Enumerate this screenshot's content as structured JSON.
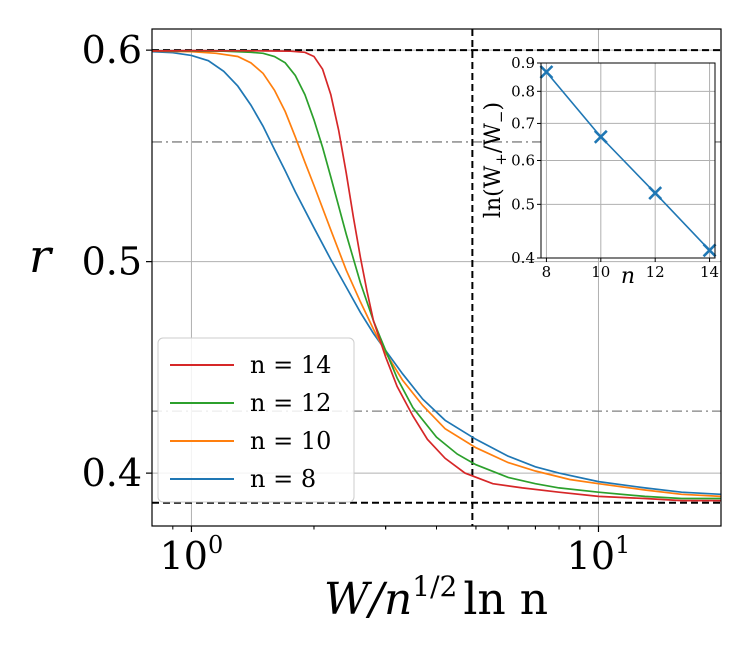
{
  "chart_data": [
    {
      "type": "line",
      "xscale": "log",
      "xlim": [
        0.8,
        20
      ],
      "ylim": [
        0.375,
        0.61
      ],
      "grid": true,
      "ylabel": "r",
      "xlabel": {
        "base": "W/n",
        "exponent": "1/2",
        "tail": "ln n"
      },
      "yticks": [
        {
          "value": 0.4,
          "label": "0.4"
        },
        {
          "value": 0.5,
          "label": "0.5"
        },
        {
          "value": 0.6,
          "label": "0.6"
        }
      ],
      "xticks": [
        {
          "value": 1,
          "base": "10",
          "exp": "0"
        },
        {
          "value": 10,
          "base": "10",
          "exp": "1"
        }
      ],
      "legend_position": "lower-left",
      "series": [
        {
          "name": "n = 14",
          "color": "#d62728",
          "points": [
            [
              0.8,
              0.5996
            ],
            [
              1.0,
              0.5998
            ],
            [
              1.2,
              0.5997
            ],
            [
              1.4,
              0.5997
            ],
            [
              1.6,
              0.5996
            ],
            [
              1.75,
              0.5995
            ],
            [
              1.9,
              0.599
            ],
            [
              2.0,
              0.597
            ],
            [
              2.1,
              0.591
            ],
            [
              2.2,
              0.579
            ],
            [
              2.3,
              0.562
            ],
            [
              2.4,
              0.542
            ],
            [
              2.5,
              0.521
            ],
            [
              2.6,
              0.502
            ],
            [
              2.7,
              0.486
            ],
            [
              2.8,
              0.472
            ],
            [
              3.0,
              0.455
            ],
            [
              3.2,
              0.441
            ],
            [
              3.5,
              0.427
            ],
            [
              3.8,
              0.416
            ],
            [
              4.2,
              0.407
            ],
            [
              4.7,
              0.4
            ],
            [
              5.5,
              0.395
            ],
            [
              6.5,
              0.393
            ],
            [
              8,
              0.391
            ],
            [
              10,
              0.389
            ],
            [
              13,
              0.388
            ],
            [
              16,
              0.387
            ],
            [
              20,
              0.387
            ]
          ]
        },
        {
          "name": "n = 12",
          "color": "#2ca02c",
          "points": [
            [
              0.8,
              0.5996
            ],
            [
              1.0,
              0.5996
            ],
            [
              1.2,
              0.5995
            ],
            [
              1.4,
              0.599
            ],
            [
              1.5,
              0.5985
            ],
            [
              1.6,
              0.597
            ],
            [
              1.7,
              0.594
            ],
            [
              1.8,
              0.588
            ],
            [
              1.9,
              0.579
            ],
            [
              2.0,
              0.567
            ],
            [
              2.1,
              0.554
            ],
            [
              2.2,
              0.54
            ],
            [
              2.4,
              0.513
            ],
            [
              2.6,
              0.49
            ],
            [
              2.8,
              0.472
            ],
            [
              3.0,
              0.458
            ],
            [
              3.2,
              0.445
            ],
            [
              3.5,
              0.431
            ],
            [
              4.0,
              0.417
            ],
            [
              4.5,
              0.409
            ],
            [
              5.0,
              0.404
            ],
            [
              6,
              0.398
            ],
            [
              7,
              0.395
            ],
            [
              8,
              0.393
            ],
            [
              10,
              0.391
            ],
            [
              13,
              0.389
            ],
            [
              16,
              0.388
            ],
            [
              20,
              0.388
            ]
          ]
        },
        {
          "name": "n = 10",
          "color": "#ff7f0e",
          "points": [
            [
              0.8,
              0.5995
            ],
            [
              1.0,
              0.5993
            ],
            [
              1.15,
              0.5985
            ],
            [
              1.3,
              0.597
            ],
            [
              1.4,
              0.594
            ],
            [
              1.5,
              0.589
            ],
            [
              1.6,
              0.581
            ],
            [
              1.7,
              0.571
            ],
            [
              1.8,
              0.559
            ],
            [
              1.9,
              0.547
            ],
            [
              2.0,
              0.536
            ],
            [
              2.2,
              0.515
            ],
            [
              2.4,
              0.496
            ],
            [
              2.6,
              0.481
            ],
            [
              2.8,
              0.468
            ],
            [
              3.0,
              0.457
            ],
            [
              3.3,
              0.444
            ],
            [
              3.7,
              0.432
            ],
            [
              4.2,
              0.421
            ],
            [
              5.0,
              0.412
            ],
            [
              6,
              0.405
            ],
            [
              7,
              0.401
            ],
            [
              8.5,
              0.397
            ],
            [
              10,
              0.395
            ],
            [
              13,
              0.392
            ],
            [
              16,
              0.39
            ],
            [
              20,
              0.389
            ]
          ]
        },
        {
          "name": "n = 8",
          "color": "#1f77b4",
          "points": [
            [
              0.8,
              0.5993
            ],
            [
              0.9,
              0.5988
            ],
            [
              1.0,
              0.5975
            ],
            [
              1.1,
              0.595
            ],
            [
              1.2,
              0.59
            ],
            [
              1.3,
              0.583
            ],
            [
              1.4,
              0.574
            ],
            [
              1.5,
              0.564
            ],
            [
              1.6,
              0.553
            ],
            [
              1.7,
              0.543
            ],
            [
              1.8,
              0.533
            ],
            [
              2.0,
              0.516
            ],
            [
              2.2,
              0.501
            ],
            [
              2.4,
              0.488
            ],
            [
              2.6,
              0.476
            ],
            [
              2.8,
              0.466
            ],
            [
              3.0,
              0.458
            ],
            [
              3.3,
              0.447
            ],
            [
              3.7,
              0.435
            ],
            [
              4.2,
              0.425
            ],
            [
              5.0,
              0.416
            ],
            [
              6,
              0.408
            ],
            [
              7,
              0.403
            ],
            [
              8,
              0.4
            ],
            [
              10,
              0.396
            ],
            [
              13,
              0.393
            ],
            [
              16,
              0.391
            ],
            [
              20,
              0.39
            ]
          ]
        }
      ],
      "reference_lines": [
        {
          "orientation": "h",
          "value": 0.6,
          "style": "dashed",
          "color": "#000000"
        },
        {
          "orientation": "h",
          "value": 0.386,
          "style": "dashed",
          "color": "#000000"
        },
        {
          "orientation": "h",
          "value": 0.5566,
          "style": "dashdot",
          "color": "#808080"
        },
        {
          "orientation": "h",
          "value": 0.4293,
          "style": "dashdot",
          "color": "#808080"
        },
        {
          "orientation": "v",
          "value": 4.9,
          "style": "dashed",
          "color": "#000000"
        }
      ]
    },
    {
      "type": "line",
      "role": "inset",
      "marker": "x",
      "color": "#1f77b4",
      "x": [
        8,
        10,
        12,
        14
      ],
      "y": [
        0.867,
        0.662,
        0.524,
        0.413
      ],
      "xlim": [
        7.8,
        14.2
      ],
      "ylim": [
        0.4,
        0.9
      ],
      "yscale": "log",
      "xlabel": "n",
      "ylabel": {
        "prefix": "ln(W",
        "sub1": "+",
        "mid": "/W",
        "sub2": "−",
        "suffix": ")"
      },
      "xticks": [
        {
          "value": 8,
          "label": "8"
        },
        {
          "value": 10,
          "label": "10"
        },
        {
          "value": 12,
          "label": "12"
        },
        {
          "value": 14,
          "label": "14"
        }
      ],
      "yticks": [
        {
          "value": 0.4,
          "label": "0.4"
        },
        {
          "value": 0.5,
          "label": "0.5"
        },
        {
          "value": 0.6,
          "label": "0.6"
        },
        {
          "value": 0.7,
          "label": "0.7"
        },
        {
          "value": 0.8,
          "label": "0.8"
        },
        {
          "value": 0.9,
          "label": "0.9"
        }
      ]
    }
  ]
}
